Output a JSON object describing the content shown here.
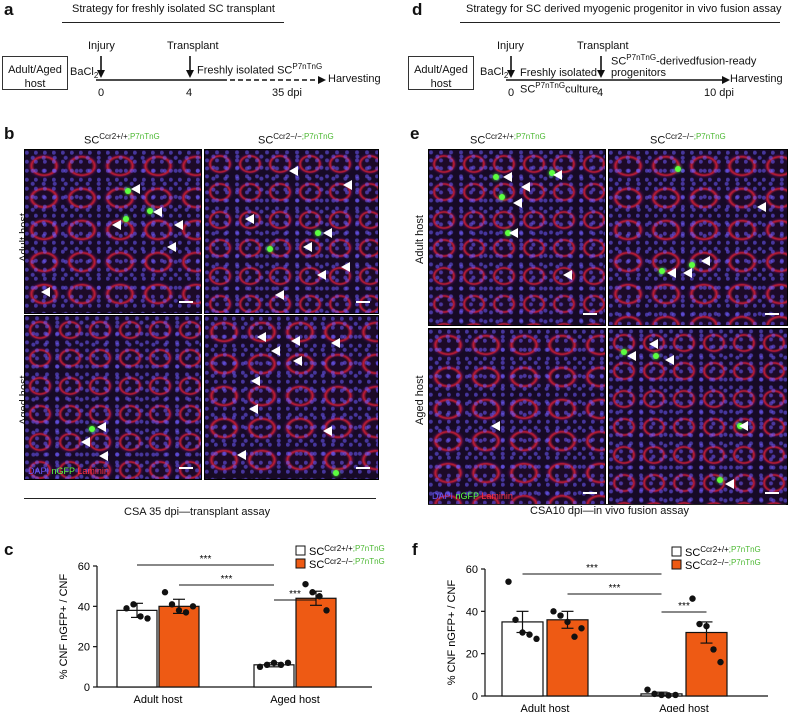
{
  "panel_a": {
    "letter": "a",
    "title": "Strategy for freshly isolated SC transplant",
    "host_box": [
      "Adult/Aged",
      "host"
    ],
    "labels": {
      "injury": "Injury",
      "bacl": "BaCl",
      "bacl_sub": "2",
      "transplant": "Transplant",
      "isolated": "Freshly isolated SC",
      "isolated_sup": "P7nTnG",
      "harvest": "Harvesting"
    },
    "ticks": [
      "0",
      "4",
      "35 dpi"
    ]
  },
  "panel_d": {
    "letter": "d",
    "title": "Strategy for SC derived myogenic progenitor in vivo fusion assay",
    "host_box": [
      "Adult/Aged",
      "host"
    ],
    "labels": {
      "injury": "Injury",
      "bacl": "BaCl",
      "bacl_sub": "2",
      "isolated": "Freshly isolated",
      "culture_sc": "SC",
      "culture_sup": "P7nTnG",
      "culture": "culture",
      "transplant": "Transplant",
      "prog_sc": "SC",
      "prog_sup": "P7nTnG",
      "prog_rest": "-derivedfusion-ready",
      "prog_line2": "progenitors",
      "harvest": "Harvesting"
    },
    "ticks": [
      "0",
      "4",
      "10 dpi"
    ]
  },
  "panel_b": {
    "letter": "b",
    "col_heads": [
      {
        "base": "SC",
        "sup1": "Ccr2+/+",
        "sup2": ";P7nTnG"
      },
      {
        "base": "SC",
        "sup1": "Ccr2−/−",
        "sup2": ";P7nTnG"
      }
    ],
    "rows": [
      "Adult host",
      "Aged host"
    ],
    "stain_legend": {
      "dapi": "DAPI",
      "ngfp": "nGFP",
      "laminin": "Laminin"
    },
    "caption": "CSA 35 dpi—transplant assay"
  },
  "panel_e": {
    "letter": "e",
    "col_heads": [
      {
        "base": "SC",
        "sup1": "Ccr2+/+",
        "sup2": ";P7nTnG"
      },
      {
        "base": "SC",
        "sup1": "Ccr2−/−",
        "sup2": ";P7nTnG"
      }
    ],
    "rows": [
      "Adult host",
      "Aged host"
    ],
    "stain_legend": {
      "dapi": "DAPI",
      "ngfp": "nGFP",
      "laminin": "Laminin"
    },
    "caption": "CSA10 dpi—in vivo fusion assay"
  },
  "colors": {
    "wt": "#ffffff",
    "ko": "#ee5a14",
    "green_text": "#4cb832",
    "laminin": "#e02030",
    "dapi": "#6a5aff"
  },
  "chart_data": [
    {
      "panel": "c",
      "type": "bar",
      "ylabel": "% CNF nGFP+ / CNF",
      "ylim": [
        0,
        60
      ],
      "yticks": [
        0,
        20,
        40,
        60
      ],
      "categories": [
        "Adult host",
        "Aged host"
      ],
      "legend": [
        {
          "base": "SC",
          "sup1": "Ccr2+/+",
          "sup2": ";P7nTnG"
        },
        {
          "base": "SC",
          "sup1": "Ccr2−/−",
          "sup2": ";P7nTnG"
        }
      ],
      "legend_position": "top-right",
      "series": [
        {
          "values": [
            38,
            11
          ],
          "errors": [
            3.5,
            1
          ],
          "points": [
            [
              39,
              41,
              35,
              34
            ],
            [
              10,
              11,
              12,
              11,
              12
            ]
          ]
        },
        {
          "values": [
            40,
            44
          ],
          "errors": [
            3.5,
            3.5
          ],
          "points": [
            [
              47,
              41,
              38,
              37,
              40
            ],
            [
              51,
              47,
              45,
              38
            ]
          ]
        }
      ],
      "significance": [
        "***",
        "***",
        "***"
      ]
    },
    {
      "panel": "f",
      "type": "bar",
      "ylabel": "% CNF nGFP+ / CNF",
      "ylim": [
        0,
        60
      ],
      "yticks": [
        0,
        20,
        40,
        60
      ],
      "categories": [
        "Adult host",
        "Aged host"
      ],
      "legend": [
        {
          "base": "SC",
          "sup1": "Ccr2+/+",
          "sup2": ";P7nTnG"
        },
        {
          "base": "SC",
          "sup1": "Ccr2−/−",
          "sup2": ";P7nTnG"
        }
      ],
      "legend_position": "top-right",
      "series": [
        {
          "values": [
            35,
            1
          ],
          "errors": [
            5,
            0.8
          ],
          "points": [
            [
              54,
              36,
              30,
              29,
              27
            ],
            [
              3,
              1,
              0.5,
              0.3,
              0.5
            ]
          ]
        },
        {
          "values": [
            36,
            30
          ],
          "errors": [
            4,
            5
          ],
          "points": [
            [
              40,
              38,
              35,
              28,
              32
            ],
            [
              46,
              34,
              33,
              22,
              16
            ]
          ]
        }
      ],
      "significance": [
        "***",
        "***",
        "***"
      ]
    }
  ]
}
